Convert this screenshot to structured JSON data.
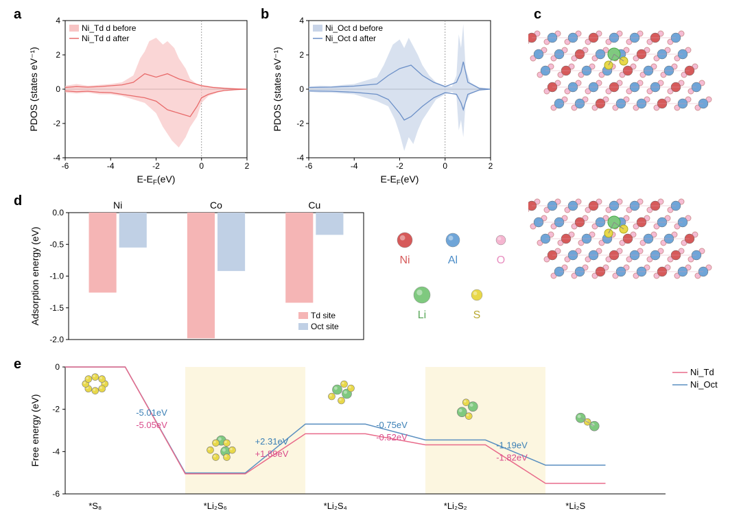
{
  "panel_a": {
    "label": "a",
    "type": "pdos",
    "xlabel": "E-E_F(eV)",
    "ylabel": "PDOS (states eV⁻¹)",
    "xlim": [
      -6,
      2
    ],
    "ylim": [
      -4,
      4
    ],
    "xticks": [
      -6,
      -4,
      -2,
      0,
      2
    ],
    "yticks": [
      -4,
      -2,
      0,
      2,
      4
    ],
    "fermi_line_x": 0,
    "legend": {
      "before": "Ni_Td d before",
      "after": "Ni_Td d after"
    },
    "colors": {
      "fill": "#f8c4c4",
      "line": "#e86a6a",
      "grid": "#cccccc"
    },
    "series_before_up": [
      [
        -6,
        0.2
      ],
      [
        -5.5,
        0.3
      ],
      [
        -5,
        0.2
      ],
      [
        -4.5,
        0.25
      ],
      [
        -4,
        0.3
      ],
      [
        -3.5,
        0.4
      ],
      [
        -3,
        0.8
      ],
      [
        -2.7,
        1.8
      ],
      [
        -2.5,
        2.2
      ],
      [
        -2.3,
        2.8
      ],
      [
        -2,
        3.0
      ],
      [
        -1.7,
        2.6
      ],
      [
        -1.5,
        2.8
      ],
      [
        -1.2,
        2.4
      ],
      [
        -1,
        1.8
      ],
      [
        -0.7,
        1.2
      ],
      [
        -0.5,
        0.6
      ],
      [
        -0.2,
        0.3
      ],
      [
        0,
        0.25
      ],
      [
        0.5,
        0.15
      ],
      [
        1,
        0.1
      ],
      [
        1.5,
        0.05
      ],
      [
        2,
        0
      ]
    ],
    "series_before_down": [
      [
        -6,
        -0.2
      ],
      [
        -5.5,
        -0.25
      ],
      [
        -5,
        -0.2
      ],
      [
        -4.5,
        -0.3
      ],
      [
        -4,
        -0.3
      ],
      [
        -3.5,
        -0.4
      ],
      [
        -3,
        -0.6
      ],
      [
        -2.5,
        -0.8
      ],
      [
        -2,
        -1.4
      ],
      [
        -1.7,
        -2.2
      ],
      [
        -1.5,
        -2.6
      ],
      [
        -1.3,
        -3.0
      ],
      [
        -1,
        -3.4
      ],
      [
        -0.7,
        -2.8
      ],
      [
        -0.5,
        -2.2
      ],
      [
        -0.2,
        -1.6
      ],
      [
        0,
        -0.8
      ],
      [
        0.3,
        -0.4
      ],
      [
        0.7,
        -0.2
      ],
      [
        1,
        -0.1
      ],
      [
        1.5,
        -0.05
      ],
      [
        2,
        0
      ]
    ],
    "series_after_up": [
      [
        -6,
        0.1
      ],
      [
        -5.5,
        0.15
      ],
      [
        -5,
        0.12
      ],
      [
        -4.5,
        0.15
      ],
      [
        -4,
        0.2
      ],
      [
        -3.5,
        0.25
      ],
      [
        -3,
        0.4
      ],
      [
        -2.5,
        0.9
      ],
      [
        -2,
        0.7
      ],
      [
        -1.5,
        0.9
      ],
      [
        -1,
        0.6
      ],
      [
        -0.5,
        0.4
      ],
      [
        0,
        0.2
      ],
      [
        0.5,
        0.1
      ],
      [
        1,
        0.05
      ],
      [
        1.5,
        0.02
      ],
      [
        2,
        0
      ]
    ],
    "series_after_down": [
      [
        -6,
        -0.1
      ],
      [
        -5.5,
        -0.15
      ],
      [
        -5,
        -0.12
      ],
      [
        -4.5,
        -0.18
      ],
      [
        -4,
        -0.2
      ],
      [
        -3.5,
        -0.3
      ],
      [
        -3,
        -0.4
      ],
      [
        -2.5,
        -0.5
      ],
      [
        -2,
        -0.7
      ],
      [
        -1.5,
        -1.2
      ],
      [
        -1,
        -1.4
      ],
      [
        -0.5,
        -1.6
      ],
      [
        -0.2,
        -1.0
      ],
      [
        0,
        -0.5
      ],
      [
        0.3,
        -0.3
      ],
      [
        0.7,
        -0.15
      ],
      [
        1,
        -0.08
      ],
      [
        1.5,
        -0.03
      ],
      [
        2,
        0
      ]
    ]
  },
  "panel_b": {
    "label": "b",
    "type": "pdos",
    "xlabel": "E-E_F(eV)",
    "ylabel": "PDOS (states eV⁻¹)",
    "xlim": [
      -6,
      2
    ],
    "ylim": [
      -4,
      4
    ],
    "xticks": [
      -6,
      -4,
      -2,
      0,
      2
    ],
    "yticks": [
      -4,
      -2,
      0,
      2,
      4
    ],
    "fermi_line_x": 0,
    "legend": {
      "before": "Ni_Oct d before",
      "after": "Ni_Oct d after"
    },
    "colors": {
      "fill": "#c8d4e8",
      "line": "#6b8fc7",
      "grid": "#cccccc"
    },
    "series_before_up": [
      [
        -6,
        0.15
      ],
      [
        -5.5,
        0.2
      ],
      [
        -5,
        0.18
      ],
      [
        -4.5,
        0.25
      ],
      [
        -4,
        0.3
      ],
      [
        -3.5,
        0.5
      ],
      [
        -3,
        0.7
      ],
      [
        -2.7,
        1.4
      ],
      [
        -2.5,
        2.0
      ],
      [
        -2.3,
        2.6
      ],
      [
        -2,
        2.9
      ],
      [
        -1.8,
        2.4
      ],
      [
        -1.6,
        3.0
      ],
      [
        -1.4,
        2.5
      ],
      [
        -1.2,
        2.0
      ],
      [
        -1,
        1.4
      ],
      [
        -0.7,
        0.8
      ],
      [
        -0.4,
        0.4
      ],
      [
        0,
        0.2
      ],
      [
        0.3,
        0.15
      ],
      [
        0.5,
        0.8
      ],
      [
        0.6,
        3.2
      ],
      [
        0.7,
        2.4
      ],
      [
        0.8,
        3.8
      ],
      [
        0.9,
        1.2
      ],
      [
        1.1,
        0.4
      ],
      [
        1.5,
        0.1
      ],
      [
        2,
        0
      ]
    ],
    "series_before_down": [
      [
        -6,
        -0.15
      ],
      [
        -5.5,
        -0.2
      ],
      [
        -5,
        -0.2
      ],
      [
        -4.5,
        -0.25
      ],
      [
        -4,
        -0.3
      ],
      [
        -3.5,
        -0.5
      ],
      [
        -3,
        -0.7
      ],
      [
        -2.5,
        -1.0
      ],
      [
        -2.2,
        -1.8
      ],
      [
        -2,
        -2.6
      ],
      [
        -1.8,
        -3.6
      ],
      [
        -1.6,
        -2.8
      ],
      [
        -1.4,
        -3.2
      ],
      [
        -1.2,
        -2.4
      ],
      [
        -1,
        -1.8
      ],
      [
        -0.7,
        -1.2
      ],
      [
        -0.4,
        -0.6
      ],
      [
        0,
        -0.3
      ],
      [
        0.3,
        -0.15
      ],
      [
        0.5,
        -0.4
      ],
      [
        0.6,
        -2.4
      ],
      [
        0.7,
        -1.8
      ],
      [
        0.8,
        -2.8
      ],
      [
        0.9,
        -0.8
      ],
      [
        1.1,
        -0.3
      ],
      [
        1.5,
        -0.08
      ],
      [
        2,
        0
      ]
    ],
    "series_after_up": [
      [
        -6,
        0.1
      ],
      [
        -5,
        0.12
      ],
      [
        -4,
        0.18
      ],
      [
        -3,
        0.3
      ],
      [
        -2.5,
        0.8
      ],
      [
        -2,
        1.2
      ],
      [
        -1.5,
        1.4
      ],
      [
        -1,
        0.8
      ],
      [
        -0.5,
        0.4
      ],
      [
        0,
        0.15
      ],
      [
        0.5,
        0.4
      ],
      [
        0.7,
        1.0
      ],
      [
        0.8,
        1.6
      ],
      [
        1,
        0.4
      ],
      [
        1.5,
        0.05
      ],
      [
        2,
        0
      ]
    ],
    "series_after_down": [
      [
        -6,
        -0.1
      ],
      [
        -5,
        -0.12
      ],
      [
        -4,
        -0.18
      ],
      [
        -3,
        -0.3
      ],
      [
        -2.5,
        -0.6
      ],
      [
        -2,
        -1.4
      ],
      [
        -1.8,
        -1.8
      ],
      [
        -1.5,
        -1.6
      ],
      [
        -1,
        -1.0
      ],
      [
        -0.5,
        -0.5
      ],
      [
        0,
        -0.2
      ],
      [
        0.5,
        -0.3
      ],
      [
        0.7,
        -0.8
      ],
      [
        0.8,
        -1.2
      ],
      [
        1,
        -0.3
      ],
      [
        1.5,
        -0.05
      ],
      [
        2,
        0
      ]
    ]
  },
  "panel_c": {
    "label": "c",
    "atom_legend": {
      "Ni": {
        "color": "#d65a5a",
        "label": "Ni",
        "text_color": "#d65a5a"
      },
      "Al": {
        "color": "#6fa5d8",
        "label": "Al",
        "text_color": "#4a8cc7"
      },
      "O": {
        "color": "#f5b5d0",
        "label": "O",
        "text_color": "#e88fc0"
      },
      "Li": {
        "color": "#7fc97f",
        "label": "Li",
        "text_color": "#5aa85a"
      },
      "S": {
        "color": "#e8d84a",
        "label": "S",
        "text_color": "#b8a830"
      }
    }
  },
  "panel_d": {
    "label": "d",
    "type": "bar",
    "ylabel": "Adsorption energy (eV)",
    "categories": [
      "Ni",
      "Co",
      "Cu"
    ],
    "ylim": [
      -2.0,
      0.0
    ],
    "yticks": [
      -2.0,
      -1.5,
      -1.0,
      -0.5,
      0.0
    ],
    "legend": {
      "td": "Td site",
      "oct": "Oct site"
    },
    "colors": {
      "td": "#f5b5b5",
      "oct": "#c0d0e5",
      "border": "#000"
    },
    "values": {
      "Ni": {
        "td": -1.26,
        "oct": -0.55
      },
      "Co": {
        "td": -1.98,
        "oct": -0.92
      },
      "Cu": {
        "td": -1.42,
        "oct": -0.35
      }
    }
  },
  "panel_e": {
    "label": "e",
    "type": "step_energy",
    "ylabel": "Free energy (eV)",
    "xspecies": [
      "*S₈",
      "*Li₂S₆",
      "*Li₂S₄",
      "*Li₂S₂",
      "*Li₂S"
    ],
    "ylim": [
      -6,
      0
    ],
    "yticks": [
      -6,
      -4,
      -2,
      0
    ],
    "legend": {
      "td": "Ni_Td",
      "oct": "Ni_Oct"
    },
    "colors": {
      "td": "#e86a8a",
      "oct": "#5a8fc0",
      "band": "#fcf6e0",
      "td_text": "#d94a8a",
      "oct_text": "#3a7fb5"
    },
    "levels": {
      "oct": [
        0,
        -5.01,
        -2.7,
        -3.45,
        -4.64
      ],
      "td": [
        0,
        -5.05,
        -3.16,
        -3.68,
        -5.5
      ]
    },
    "deltas": [
      {
        "oct": "-5.01eV",
        "td": "-5.05eV"
      },
      {
        "oct": "+2.31eV",
        "td": "+1.89eV"
      },
      {
        "oct": "-0.75eV",
        "td": "-0.52eV"
      },
      {
        "oct": "-1.19eV",
        "td": "-1.82eV"
      }
    ]
  }
}
